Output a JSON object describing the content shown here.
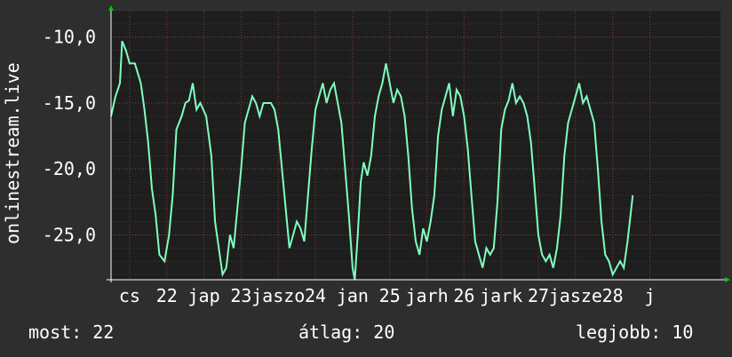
{
  "chart_data": {
    "type": "line",
    "ylabel": "onlinestream.live",
    "ylim": [
      -28.4,
      -8.0
    ],
    "yticks": [
      {
        "value": -10,
        "label": "-10,0"
      },
      {
        "value": -15,
        "label": "-15,0"
      },
      {
        "value": -20,
        "label": "-20,0"
      },
      {
        "value": -25,
        "label": "-25,0"
      }
    ],
    "xlim": [
      0,
      8.2
    ],
    "xticks": [
      {
        "pos": 0.25,
        "label": "cs"
      },
      {
        "pos": 0.75,
        "label": "22"
      },
      {
        "pos": 1.25,
        "label": "jap"
      },
      {
        "pos": 1.75,
        "label": "23"
      },
      {
        "pos": 2.25,
        "label": "jaszo"
      },
      {
        "pos": 2.75,
        "label": "24"
      },
      {
        "pos": 3.25,
        "label": "jan"
      },
      {
        "pos": 3.75,
        "label": "25"
      },
      {
        "pos": 4.25,
        "label": "jarh"
      },
      {
        "pos": 4.75,
        "label": "26"
      },
      {
        "pos": 5.25,
        "label": "jark"
      },
      {
        "pos": 5.75,
        "label": "27"
      },
      {
        "pos": 6.25,
        "label": "jasze"
      },
      {
        "pos": 6.75,
        "label": "28"
      },
      {
        "pos": 7.25,
        "label": "j"
      }
    ],
    "grid": true,
    "series": [
      {
        "color": "#7fffbf",
        "points": [
          [
            0.0,
            -16.0
          ],
          [
            0.06,
            -14.5
          ],
          [
            0.12,
            -13.5
          ],
          [
            0.15,
            -10.3
          ],
          [
            0.2,
            -11.0
          ],
          [
            0.25,
            -12.0
          ],
          [
            0.32,
            -12.0
          ],
          [
            0.4,
            -13.5
          ],
          [
            0.45,
            -15.5
          ],
          [
            0.5,
            -18.0
          ],
          [
            0.55,
            -21.5
          ],
          [
            0.6,
            -23.5
          ],
          [
            0.65,
            -26.5
          ],
          [
            0.72,
            -27.0
          ],
          [
            0.78,
            -25.0
          ],
          [
            0.83,
            -22.0
          ],
          [
            0.88,
            -17.0
          ],
          [
            0.95,
            -16.0
          ],
          [
            1.0,
            -15.0
          ],
          [
            1.05,
            -14.8
          ],
          [
            1.1,
            -13.5
          ],
          [
            1.15,
            -15.5
          ],
          [
            1.2,
            -15.0
          ],
          [
            1.28,
            -16.0
          ],
          [
            1.35,
            -19.0
          ],
          [
            1.4,
            -24.0
          ],
          [
            1.45,
            -26.0
          ],
          [
            1.5,
            -28.0
          ],
          [
            1.55,
            -27.5
          ],
          [
            1.6,
            -25.0
          ],
          [
            1.65,
            -26.0
          ],
          [
            1.7,
            -23.0
          ],
          [
            1.75,
            -20.0
          ],
          [
            1.8,
            -16.5
          ],
          [
            1.85,
            -15.5
          ],
          [
            1.9,
            -14.5
          ],
          [
            1.95,
            -15.0
          ],
          [
            2.0,
            -16.0
          ],
          [
            2.05,
            -15.0
          ],
          [
            2.1,
            -15.0
          ],
          [
            2.15,
            -15.0
          ],
          [
            2.2,
            -15.5
          ],
          [
            2.25,
            -17.0
          ],
          [
            2.3,
            -20.0
          ],
          [
            2.35,
            -23.0
          ],
          [
            2.4,
            -26.0
          ],
          [
            2.45,
            -25.0
          ],
          [
            2.5,
            -24.0
          ],
          [
            2.55,
            -24.5
          ],
          [
            2.6,
            -25.5
          ],
          [
            2.65,
            -22.0
          ],
          [
            2.7,
            -18.5
          ],
          [
            2.75,
            -15.5
          ],
          [
            2.8,
            -14.5
          ],
          [
            2.85,
            -13.5
          ],
          [
            2.9,
            -15.0
          ],
          [
            2.95,
            -14.0
          ],
          [
            3.0,
            -13.5
          ],
          [
            3.05,
            -15.0
          ],
          [
            3.1,
            -16.5
          ],
          [
            3.15,
            -20.0
          ],
          [
            3.2,
            -23.5
          ],
          [
            3.25,
            -27.5
          ],
          [
            3.28,
            -28.4
          ],
          [
            3.32,
            -25.0
          ],
          [
            3.36,
            -21.0
          ],
          [
            3.4,
            -19.5
          ],
          [
            3.45,
            -20.5
          ],
          [
            3.5,
            -19.0
          ],
          [
            3.55,
            -16.0
          ],
          [
            3.6,
            -14.5
          ],
          [
            3.65,
            -13.5
          ],
          [
            3.7,
            -12.0
          ],
          [
            3.75,
            -13.5
          ],
          [
            3.8,
            -15.0
          ],
          [
            3.85,
            -14.0
          ],
          [
            3.9,
            -14.5
          ],
          [
            3.95,
            -16.0
          ],
          [
            4.0,
            -19.0
          ],
          [
            4.05,
            -23.0
          ],
          [
            4.1,
            -25.5
          ],
          [
            4.15,
            -26.5
          ],
          [
            4.2,
            -24.5
          ],
          [
            4.25,
            -25.5
          ],
          [
            4.3,
            -24.0
          ],
          [
            4.35,
            -22.0
          ],
          [
            4.4,
            -17.5
          ],
          [
            4.45,
            -15.5
          ],
          [
            4.5,
            -14.5
          ],
          [
            4.55,
            -13.5
          ],
          [
            4.6,
            -16.0
          ],
          [
            4.65,
            -14.0
          ],
          [
            4.7,
            -14.5
          ],
          [
            4.75,
            -16.0
          ],
          [
            4.8,
            -18.5
          ],
          [
            4.85,
            -22.0
          ],
          [
            4.9,
            -25.5
          ],
          [
            4.95,
            -26.5
          ],
          [
            5.0,
            -27.5
          ],
          [
            5.05,
            -26.0
          ],
          [
            5.1,
            -26.5
          ],
          [
            5.15,
            -26.0
          ],
          [
            5.2,
            -22.5
          ],
          [
            5.25,
            -17.0
          ],
          [
            5.3,
            -15.5
          ],
          [
            5.35,
            -14.8
          ],
          [
            5.4,
            -13.5
          ],
          [
            5.45,
            -15.0
          ],
          [
            5.5,
            -14.5
          ],
          [
            5.55,
            -15.0
          ],
          [
            5.6,
            -16.0
          ],
          [
            5.65,
            -18.0
          ],
          [
            5.7,
            -21.5
          ],
          [
            5.75,
            -25.0
          ],
          [
            5.8,
            -26.5
          ],
          [
            5.85,
            -27.0
          ],
          [
            5.9,
            -26.5
          ],
          [
            5.95,
            -27.5
          ],
          [
            6.0,
            -26.0
          ],
          [
            6.05,
            -23.5
          ],
          [
            6.1,
            -19.0
          ],
          [
            6.15,
            -16.5
          ],
          [
            6.2,
            -15.5
          ],
          [
            6.25,
            -14.5
          ],
          [
            6.3,
            -13.5
          ],
          [
            6.35,
            -15.0
          ],
          [
            6.4,
            -14.5
          ],
          [
            6.45,
            -15.5
          ],
          [
            6.5,
            -16.5
          ],
          [
            6.55,
            -20.0
          ],
          [
            6.6,
            -24.0
          ],
          [
            6.65,
            -26.5
          ],
          [
            6.7,
            -27.0
          ],
          [
            6.75,
            -28.0
          ],
          [
            6.8,
            -27.5
          ],
          [
            6.85,
            -27.0
          ],
          [
            6.9,
            -27.5
          ],
          [
            6.95,
            -25.5
          ],
          [
            7.0,
            -23.0
          ],
          [
            7.02,
            -22.0
          ]
        ]
      }
    ],
    "axis_color": "#ffffff",
    "arrow_color": "#00cc00",
    "grid_color": "#8a3a3a",
    "plot_bg": "#1e1e1e"
  },
  "footer": {
    "current": "most: 22",
    "average": "átlag: 20",
    "max": "legjobb: 10"
  }
}
